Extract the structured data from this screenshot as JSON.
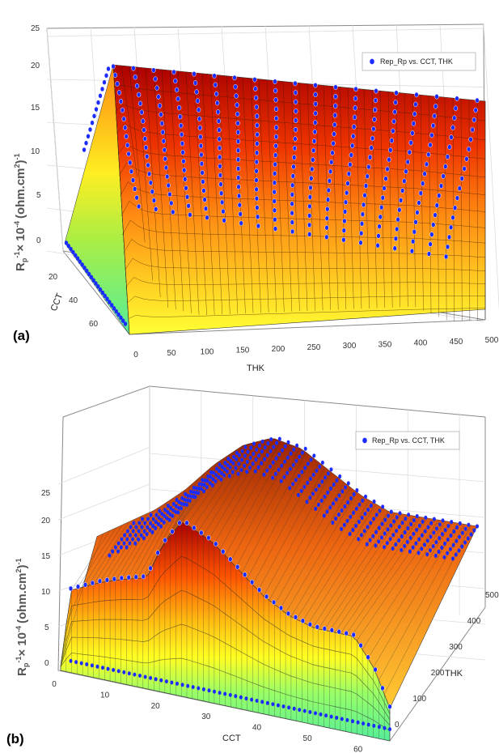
{
  "colors": {
    "low": "#66ee99",
    "mid_low": "#ffff22",
    "mid": "#ffaa11",
    "mid_high": "#ff4400",
    "high": "#bb0000",
    "markers": "#1c2cff"
  },
  "chart_data": [
    {
      "type": "surface",
      "panel_label": "(a)",
      "xlabel": "THK",
      "ylabel": "CCT",
      "zlabel_main": "R",
      "zlabel_sub": "p",
      "zlabel_sup": "-1",
      "zlabel_rest": "× 10",
      "zlabel_exp": "-4",
      "zlabel_unit": "(ohm.cm",
      "zlabel_unit_sup": "2",
      "zlabel_unit_end": ")",
      "zlabel_unit_end_sup": "-1",
      "x_ticks": [
        "0",
        "50",
        "100",
        "150",
        "200",
        "250",
        "300",
        "350",
        "400",
        "450",
        "500"
      ],
      "y_ticks": [
        "20",
        "40",
        "60"
      ],
      "z_ticks": [
        "0",
        "5",
        "10",
        "15",
        "20",
        "25"
      ],
      "xlim": [
        0,
        500
      ],
      "ylim": [
        0,
        65
      ],
      "zlim": [
        0,
        25
      ],
      "legend": "Rep_Rp vs. CCT, THK",
      "legend_position": "top-right",
      "grid": true,
      "thk_profile": {
        "thk": [
          0,
          5,
          12,
          25,
          50,
          100,
          150,
          200,
          250,
          300,
          350,
          400,
          430,
          460,
          500
        ],
        "value": [
          2,
          12,
          21,
          10,
          6,
          5,
          5,
          5,
          5,
          5,
          5,
          5,
          4,
          3,
          1
        ]
      },
      "cct_top_at_thk20": {
        "cct": [
          0,
          10,
          20,
          30,
          40,
          50,
          60,
          65
        ],
        "value": [
          22,
          21.5,
          21,
          20,
          19,
          18,
          17,
          16
        ]
      }
    },
    {
      "type": "surface",
      "panel_label": "(b)",
      "xlabel": "CCT",
      "ylabel": "THK",
      "zlabel_main": "R",
      "zlabel_sub": "p",
      "zlabel_sup": "-1",
      "zlabel_rest": "× 10",
      "zlabel_exp": "-4",
      "zlabel_unit": "(ohm.cm",
      "zlabel_unit_sup": "2",
      "zlabel_unit_end": ")",
      "zlabel_unit_end_sup": "-1",
      "x_ticks": [
        "0",
        "10",
        "20",
        "30",
        "40",
        "50",
        "60"
      ],
      "y_ticks": [
        "0",
        "100",
        "200",
        "300",
        "400",
        "500"
      ],
      "z_ticks": [
        "0",
        "5",
        "10",
        "15",
        "20",
        "25"
      ],
      "xlim": [
        0,
        65
      ],
      "ylim": [
        0,
        500
      ],
      "zlim": [
        0,
        25
      ],
      "legend": "Rep_Rp vs. CCT, THK",
      "legend_position": "top-right",
      "grid": true,
      "front_profile_thk0": {
        "cct": [
          0,
          2,
          5,
          8,
          12,
          17,
          20,
          24,
          27,
          30,
          35,
          40,
          45,
          50,
          55,
          58,
          62,
          65
        ],
        "value": [
          0,
          11,
          12,
          13,
          14,
          15,
          20,
          24,
          23,
          22,
          19,
          16,
          14,
          13,
          13,
          13,
          9,
          4
        ]
      },
      "ridge_profile": {
        "cct": [
          0,
          5,
          10,
          15,
          20,
          25,
          30,
          35,
          40,
          45,
          50,
          55,
          60,
          65
        ],
        "value": [
          11,
          13,
          15,
          18,
          22,
          25,
          26,
          24,
          20,
          16,
          13,
          12,
          11,
          10
        ]
      },
      "bottom_markers_value": 0.5
    }
  ]
}
